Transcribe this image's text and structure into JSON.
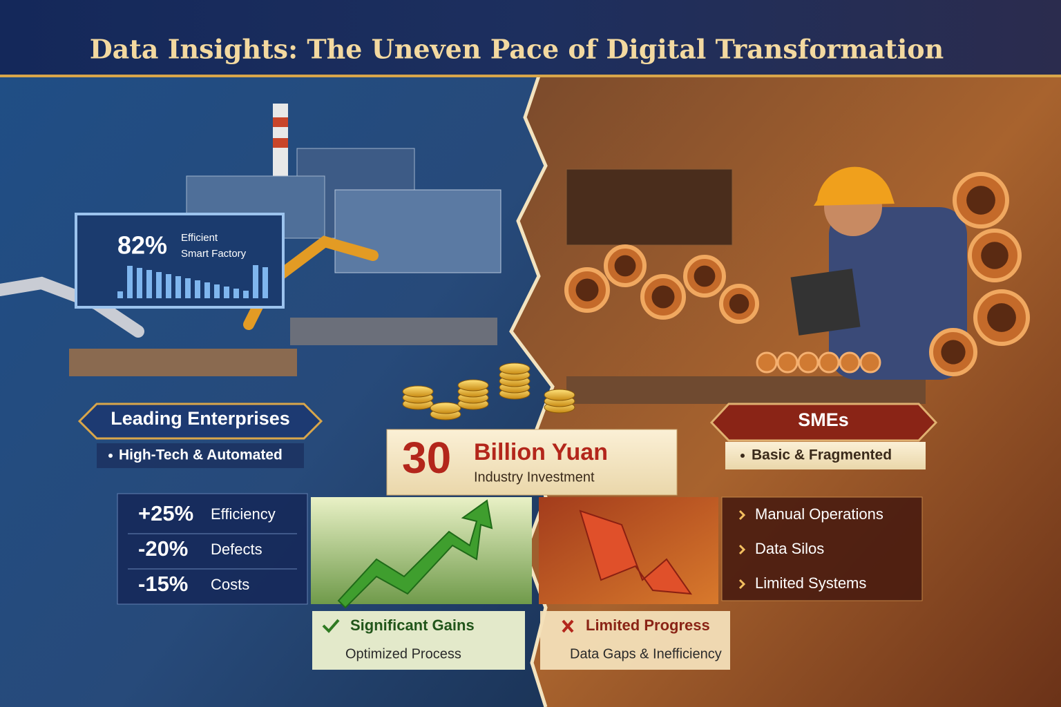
{
  "header": {
    "title": "Data Insights: The Uneven Pace of Digital Transformation"
  },
  "left": {
    "monitor": {
      "value": "82%",
      "line1": "Efficient",
      "line2": "Smart Factory"
    },
    "badge": "Leading Enterprises",
    "subtitle": "High-Tech & Automated",
    "stats": [
      {
        "value": "+25%",
        "label": "Efficiency"
      },
      {
        "value": "-20%",
        "label": "Defects"
      },
      {
        "value": "-15%",
        "label": "Costs"
      }
    ],
    "result": {
      "title": "Significant Gains",
      "subtitle": "Optimized Process"
    }
  },
  "center": {
    "amount": "30",
    "unit": "Billion Yuan",
    "caption": "Industry Investment"
  },
  "right": {
    "badge": "SMEs",
    "subtitle": "Basic & Fragmented",
    "issues": [
      "Manual Operations",
      "Data Silos",
      "Limited Systems"
    ],
    "result": {
      "title": "Limited Progress",
      "subtitle": "Data Gaps & Inefficiency"
    }
  }
}
